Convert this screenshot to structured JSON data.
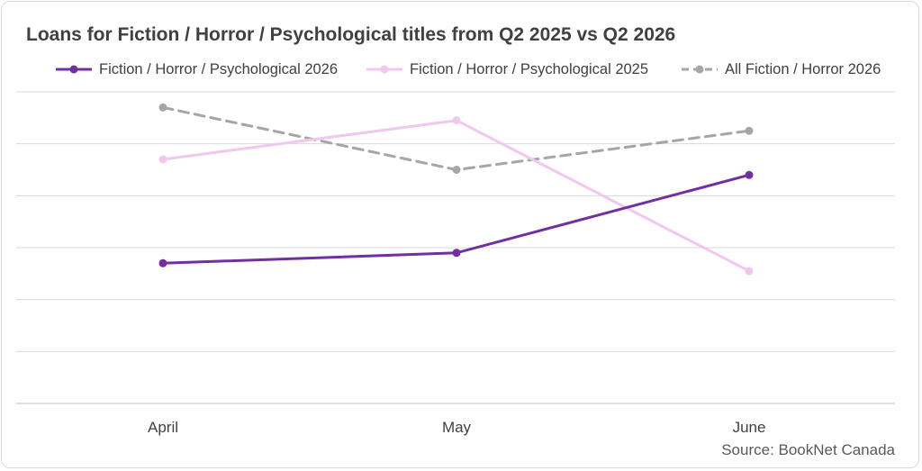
{
  "chart_data": {
    "type": "line",
    "title": "Loans for Fiction / Horror / Psychological titles from Q2 2025 vs Q2 2026",
    "categories": [
      "April",
      "May",
      "June"
    ],
    "series": [
      {
        "name": "Fiction / Horror / Psychological 2026",
        "values": [
          2.7,
          2.9,
          4.4
        ],
        "color": "#7030a0",
        "dash": "solid"
      },
      {
        "name": "Fiction / Horror / Psychological 2025",
        "values": [
          4.7,
          5.45,
          2.55
        ],
        "color": "#f0c8ee",
        "dash": "solid"
      },
      {
        "name": "All Fiction / Horror 2026",
        "values": [
          5.7,
          4.5,
          5.25
        ],
        "color": "#a6a6a6",
        "dash": "dashed"
      }
    ],
    "ylim": [
      0,
      6
    ],
    "y_ticks_labeled": false,
    "grid": true,
    "legend_position": "top",
    "xlabel": "",
    "ylabel": ""
  },
  "source": "Source: BookNet Canada"
}
